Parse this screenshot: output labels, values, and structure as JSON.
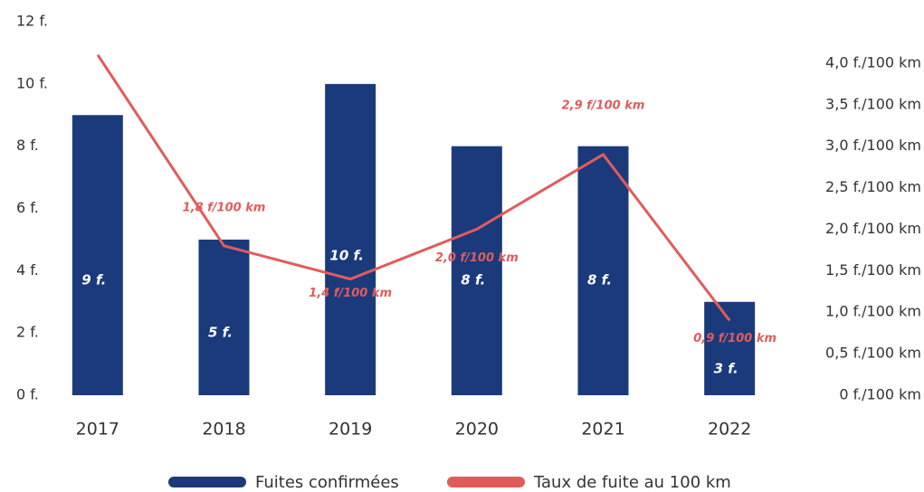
{
  "chart_data": {
    "type": "bar_line",
    "categories": [
      "2017",
      "2018",
      "2019",
      "2020",
      "2021",
      "2022"
    ],
    "series": [
      {
        "name": "Fuites confirmées",
        "color": "#1b3a7c",
        "values": [
          9,
          5,
          10,
          8,
          8,
          3
        ],
        "value_labels": [
          "9 f.",
          "5 f.",
          "10 f.",
          "8 f.",
          "8 f.",
          "3 f."
        ]
      },
      {
        "name": "Taux de fuite au 100 km",
        "color": "#e25b5b",
        "axis": "y2",
        "values": [
          4.1,
          1.8,
          1.4,
          2.0,
          2.9,
          0.9
        ],
        "value_labels": [
          null,
          "1,8 f/100 km",
          "1,4 f/100 km",
          "2,0 f/100 km",
          "2,9 f/100 km",
          "0,9 f/100 km"
        ]
      }
    ],
    "ylim": [
      0,
      12
    ],
    "yticks": [
      {
        "value": 0,
        "label": "0 f."
      },
      {
        "value": 2,
        "label": "2 f."
      },
      {
        "value": 4,
        "label": "4 f."
      },
      {
        "value": 6,
        "label": "6 f."
      },
      {
        "value": 8,
        "label": "8 f."
      },
      {
        "value": 10,
        "label": "10 f."
      },
      {
        "value": 12,
        "label": "12 f."
      }
    ],
    "y2lim": [
      0,
      4.5
    ],
    "y2ticks": [
      {
        "value": 0,
        "label": "0 f./100 km"
      },
      {
        "value": 0.5,
        "label": "0,5 f./100 km"
      },
      {
        "value": 1,
        "label": "1,0 f./100 km"
      },
      {
        "value": 1.5,
        "label": "1,5 f./100 km"
      },
      {
        "value": 2,
        "label": "2,0 f./100 km"
      },
      {
        "value": 2.5,
        "label": "2,5 f./100 km"
      },
      {
        "value": 3,
        "label": "3,0 f./100 km"
      },
      {
        "value": 3.5,
        "label": "3,5 f./100 km"
      },
      {
        "value": 4,
        "label": "4,0 f./100 km"
      }
    ],
    "legend": "bottom"
  }
}
